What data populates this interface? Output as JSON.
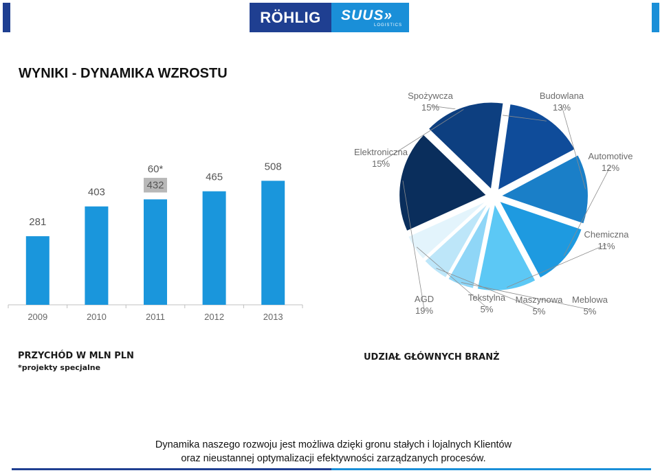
{
  "colors": {
    "brand_navy": "#1f3f91",
    "brand_blue": "#1a8fd8",
    "bar_fill": "#1a96dc",
    "special_fill": "#b8b8b8",
    "axis": "#bfbfbf",
    "label_grey": "#555555",
    "pie_label": "#6b6b6b",
    "leader": "#8c8c8c"
  },
  "logo": {
    "left_text": "RÖHLIG",
    "right_text": "SUUS",
    "right_mark": "»",
    "right_subtext": "LOGISTICS"
  },
  "page_title": "WYNIKI - DYNAMIKA WZROSTU",
  "charts_text": {
    "bar_title": "PRZYCHÓD W MLN PLN",
    "bar_note": "*projekty specjalne",
    "pie_title": "UDZIAŁ GŁÓWNYCH BRANŻ"
  },
  "footer": {
    "line1": "Dynamika naszego rozwoju jest możliwa dzięki gronu stałych i lojalnych Klientów",
    "line2": "oraz nieustannej optymalizacji efektywności zarządzanych procesów."
  },
  "chart_data": [
    {
      "type": "bar",
      "categories": [
        "2009",
        "2010",
        "2011",
        "2012",
        "2013"
      ],
      "series": [
        {
          "values": [
            281,
            403,
            432,
            465,
            508
          ],
          "labels": [
            "281",
            "403",
            "432",
            "465",
            "508"
          ]
        },
        {
          "values": [
            0,
            0,
            60,
            0,
            0
          ],
          "labels": [
            "",
            "",
            "60*",
            "",
            ""
          ]
        }
      ],
      "stacked": true,
      "ylim": [
        0,
        560
      ],
      "grid": false,
      "legend": "none"
    },
    {
      "type": "pie",
      "exploded": true,
      "slices": [
        {
          "name": "Spożywcza",
          "value": 15,
          "label": "15%",
          "color": "#0f4c9a"
        },
        {
          "name": "Budowlana",
          "value": 13,
          "label": "13%",
          "color": "#1a7fc8"
        },
        {
          "name": "Automotive",
          "value": 12,
          "label": "12%",
          "color": "#1e9ae0"
        },
        {
          "name": "Chemiczna",
          "value": 11,
          "label": "11%",
          "color": "#5cc8f5"
        },
        {
          "name": "Meblowa",
          "value": 5,
          "label": "5%",
          "color": "#8fd6f7"
        },
        {
          "name": "Maszynowa",
          "value": 5,
          "label": "5%",
          "color": "#bde6f9"
        },
        {
          "name": "Tekstylna",
          "value": 5,
          "label": "5%",
          "color": "#e3f4fc"
        },
        {
          "name": "AGD",
          "value": 19,
          "label": "19%",
          "color": "#0a2e5c"
        },
        {
          "name": "Elektroniczna",
          "value": 15,
          "label": "15%",
          "color": "#0d3f80"
        }
      ],
      "legend": "none"
    }
  ]
}
